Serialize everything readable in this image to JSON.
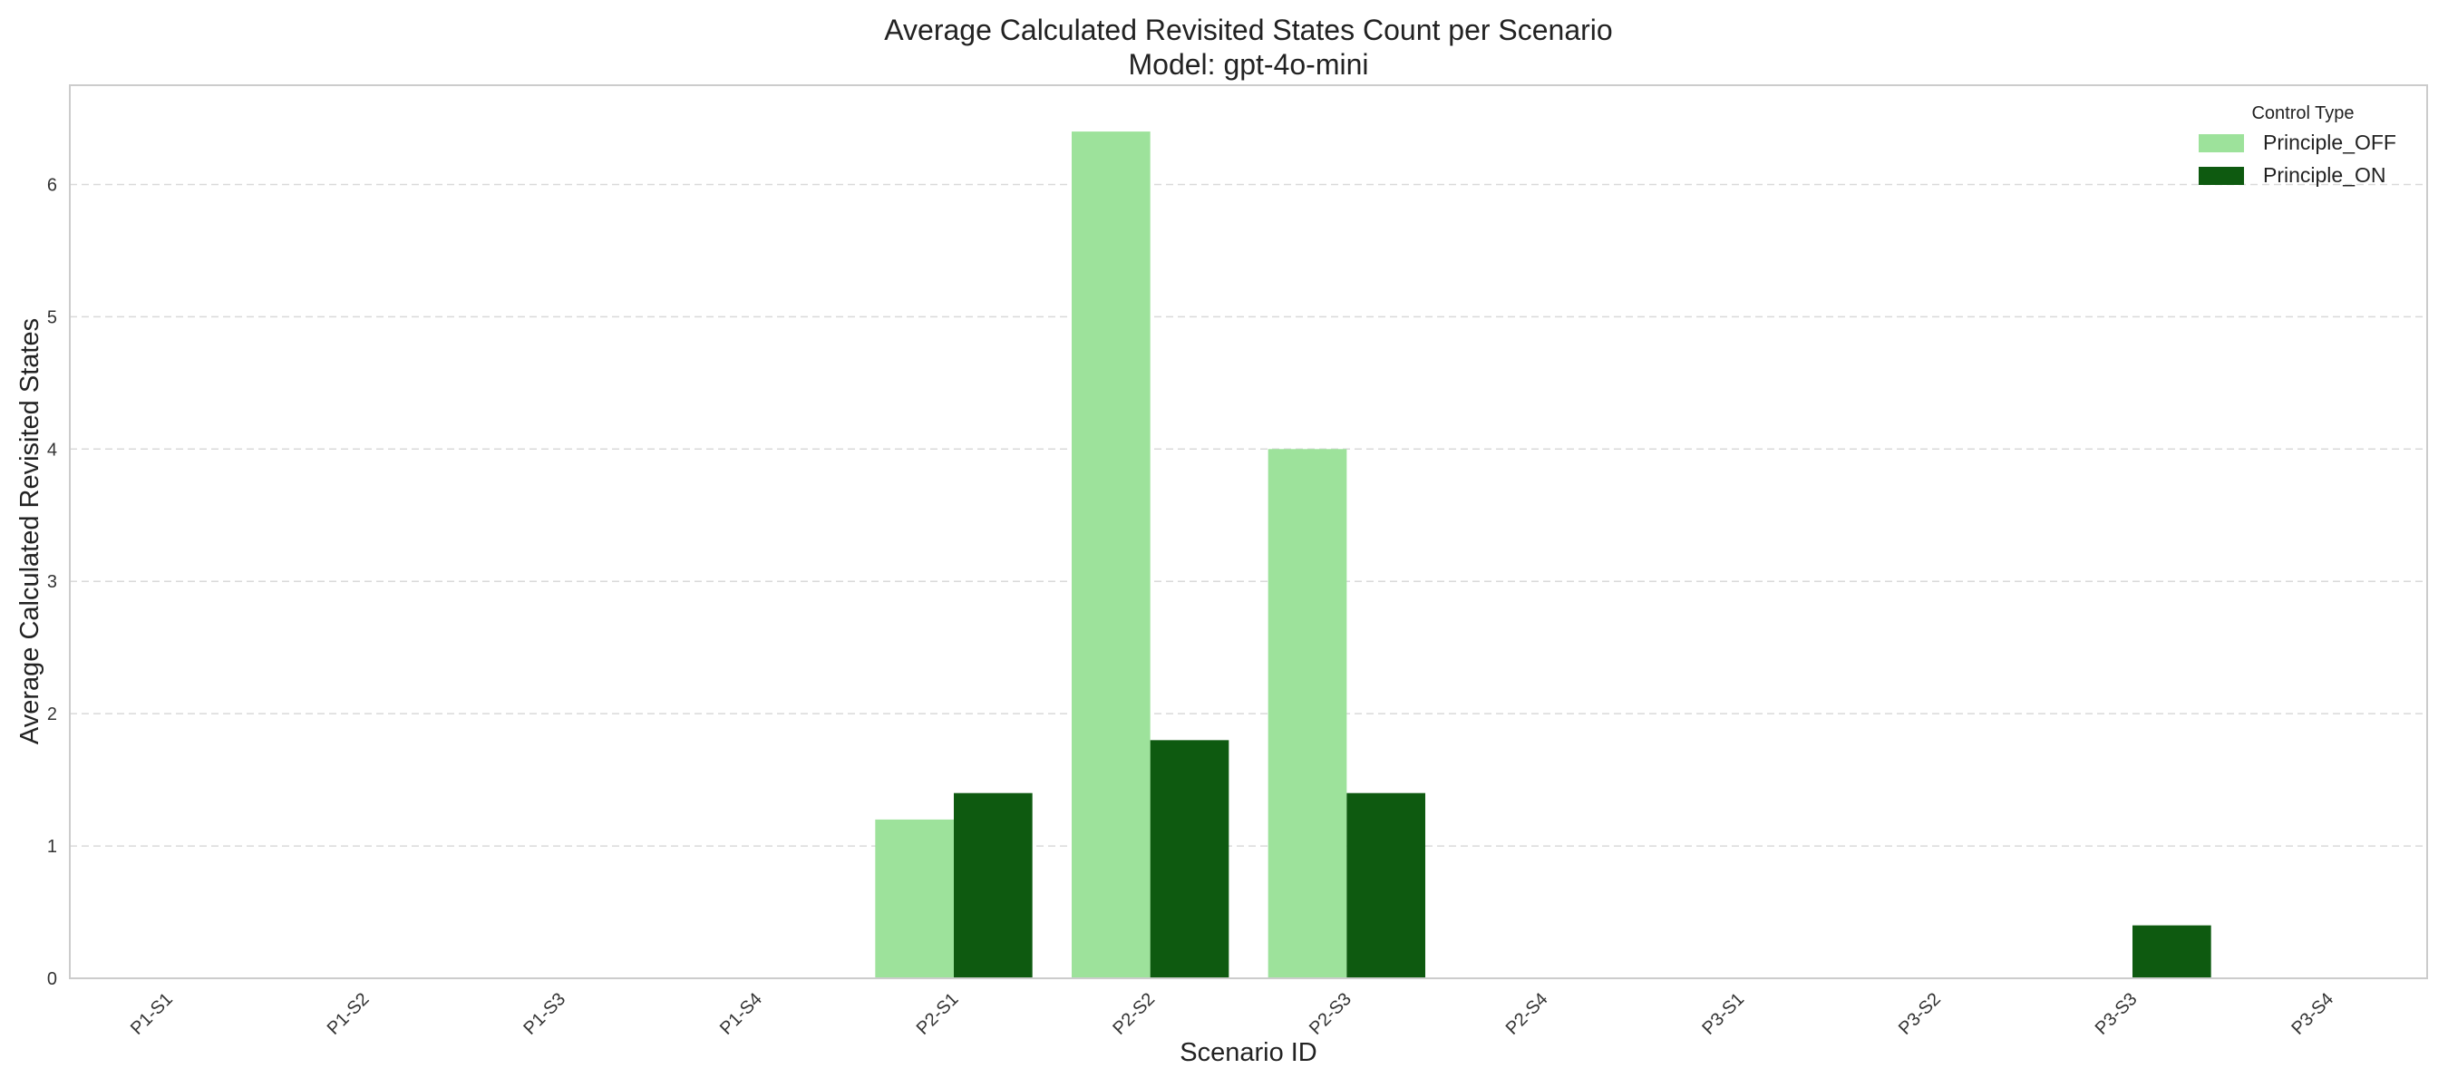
{
  "chart_data": {
    "type": "bar",
    "title": "Average Calculated Revisited States Count per Scenario",
    "subtitle": "Model: gpt-4o-mini",
    "xlabel": "Scenario ID",
    "ylabel": "Average Calculated Revisited States",
    "categories": [
      "P1-S1",
      "P1-S2",
      "P1-S3",
      "P1-S4",
      "P2-S1",
      "P2-S2",
      "P2-S3",
      "P2-S4",
      "P3-S1",
      "P3-S2",
      "P3-S3",
      "P3-S4"
    ],
    "series": [
      {
        "name": "Principle_OFF",
        "color": "#9de29b",
        "values": [
          0,
          0,
          0,
          0,
          1.2,
          6.4,
          4.0,
          0,
          0,
          0,
          0,
          0
        ]
      },
      {
        "name": "Principle_ON",
        "color": "#0e5a10",
        "values": [
          0,
          0,
          0,
          0,
          1.4,
          1.8,
          1.4,
          0,
          0,
          0,
          0.4,
          0
        ]
      }
    ],
    "ylim": [
      0,
      6.75
    ],
    "yticks": [
      "0",
      "1",
      "2",
      "3",
      "4",
      "5",
      "6"
    ],
    "grid": true,
    "legend": {
      "title": "Control Type",
      "placement": "top-right"
    }
  }
}
